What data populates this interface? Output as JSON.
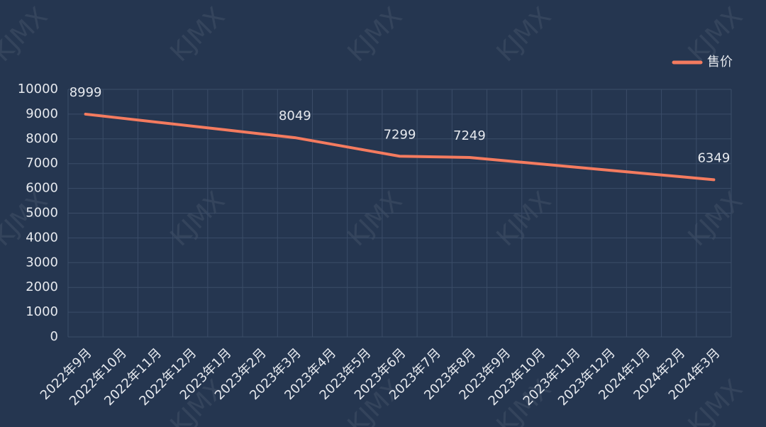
{
  "chart_data": {
    "type": "line",
    "watermark": "KJMX",
    "categories": [
      "2022年9月",
      "2022年10月",
      "2022年11月",
      "2022年12月",
      "2023年1月",
      "2023年2月",
      "2023年3月",
      "2023年4月",
      "2023年5月",
      "2023年6月",
      "2023年7月",
      "2023年8月",
      "2023年9月",
      "2023年10月",
      "2023年11月",
      "2023年12月",
      "2024年1月",
      "2024年2月",
      "2024年3月"
    ],
    "series": [
      {
        "name": "售价",
        "color": "#f47b5f",
        "values": [
          8999,
          8841,
          8683,
          8524,
          8366,
          8207,
          8049,
          7799,
          7549,
          7299,
          7274,
          7249,
          7120,
          6992,
          6863,
          6735,
          6606,
          6478,
          6349
        ],
        "value_labels": [
          "8999",
          null,
          null,
          null,
          null,
          null,
          "8049",
          null,
          null,
          "7299",
          null,
          "7249",
          null,
          null,
          null,
          null,
          null,
          null,
          "6349"
        ]
      }
    ],
    "ylim": [
      0,
      10000
    ],
    "yticks": [
      0,
      1000,
      2000,
      3000,
      4000,
      5000,
      6000,
      7000,
      8000,
      9000,
      10000
    ],
    "grid": true,
    "legend": "top-right"
  }
}
